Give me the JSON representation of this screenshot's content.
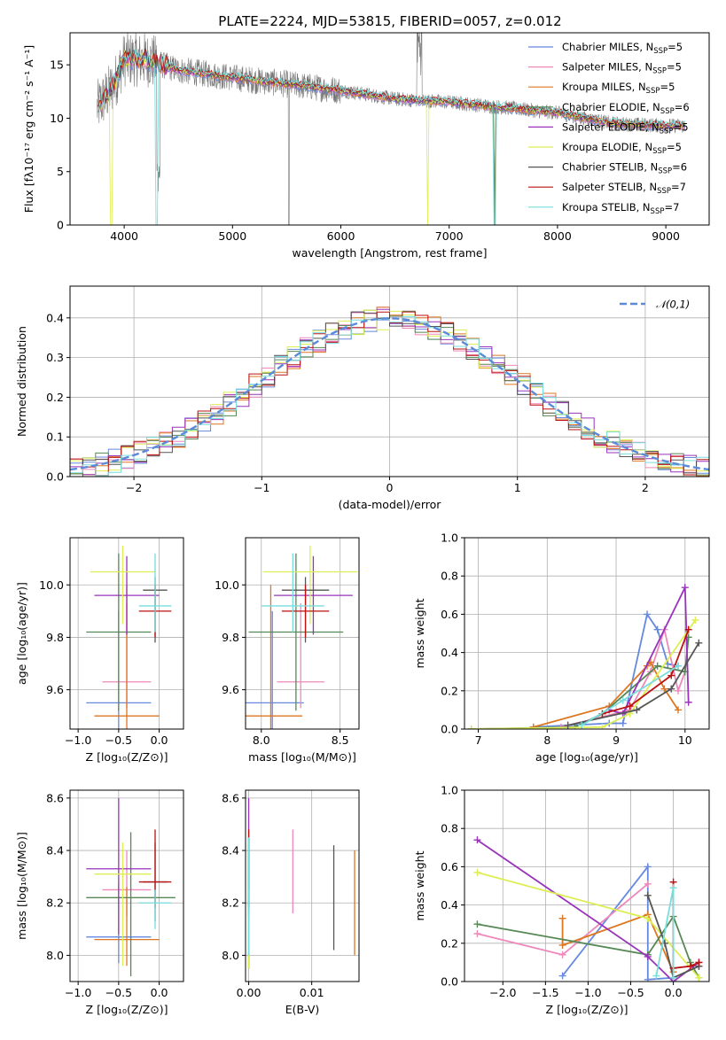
{
  "title": "PLATE=2224, MJD=53815, FIBERID=0057, z=0.012",
  "colors": [
    "#6688dd",
    "#ee88bb",
    "#dd7722",
    "#558855",
    "#9933bb",
    "#ddee55",
    "#555555",
    "#bb1111",
    "#77dddd"
  ],
  "legend": [
    {
      "name": "Chabrier MILES",
      "n": "5"
    },
    {
      "name": "Salpeter MILES",
      "n": "5"
    },
    {
      "name": "Kroupa MILES",
      "n": "5"
    },
    {
      "name": "Chabrier ELODIE",
      "n": "6"
    },
    {
      "name": "Salpeter ELODIE",
      "n": "5"
    },
    {
      "name": "Kroupa ELODIE",
      "n": "5"
    },
    {
      "name": "Chabrier STELIB",
      "n": "6"
    },
    {
      "name": "Salpeter STELIB",
      "n": "7"
    },
    {
      "name": "Kroupa STELIB",
      "n": "7"
    }
  ],
  "nssp_prefix": ", N",
  "nssp_sub": "SSP",
  "nssp_eq": "=",
  "chart_data": [
    {
      "id": "spectrum",
      "type": "line",
      "title": "PLATE=2224, MJD=53815, FIBERID=0057, z=0.012",
      "xlabel": "wavelength [Angstrom, rest frame]",
      "ylabel": "Flux [fλ10⁻¹⁷ erg cm⁻² s⁻¹ A⁻¹]",
      "xlim": [
        3500,
        9400
      ],
      "ylim": [
        0,
        18
      ],
      "xticks": [
        4000,
        5000,
        6000,
        7000,
        8000,
        9000
      ],
      "yticks": [
        0,
        5,
        10,
        15
      ],
      "data_wavelength_range": [
        3750,
        9180
      ],
      "continuum": [
        [
          3750,
          11
        ],
        [
          3900,
          13
        ],
        [
          4000,
          15.5
        ],
        [
          4200,
          15.5
        ],
        [
          4500,
          14.5
        ],
        [
          5000,
          13.8
        ],
        [
          5500,
          13.2
        ],
        [
          6000,
          12.6
        ],
        [
          6500,
          11.8
        ],
        [
          7000,
          11.5
        ],
        [
          7500,
          11
        ],
        [
          8000,
          10.5
        ],
        [
          8500,
          9.5
        ],
        [
          9000,
          9.3
        ],
        [
          9180,
          9.3
        ]
      ],
      "legend": "upper right",
      "grid": false
    },
    {
      "id": "residuals",
      "type": "step",
      "xlabel": "(data-model)/error",
      "ylabel": "Normed distribution",
      "xlim": [
        -2.5,
        2.5
      ],
      "ylim": [
        0,
        0.48
      ],
      "xticks": [
        -2,
        -1,
        0,
        1,
        2
      ],
      "yticks": [
        0.0,
        0.1,
        0.2,
        0.3,
        0.4
      ],
      "bin_width": 0.1,
      "reference": {
        "name": "𝒩(0,1)",
        "mean": 0,
        "sigma": 1
      },
      "legend": "upper right",
      "grid": true
    },
    {
      "id": "age_vs_Z",
      "type": "errorbar",
      "xlabel": "Z [log₁₀(Z/Z⊙)]",
      "ylabel": "age  [log₁₀(age/yr)]",
      "xlim": [
        -1.1,
        0.3
      ],
      "ylim": [
        9.45,
        10.18
      ],
      "xticks": [
        -1.0,
        -0.5,
        0.0
      ],
      "xticklabels": [
        "−1.0",
        "−0.5",
        "0.0"
      ],
      "yticks": [
        9.6,
        9.8,
        10.0
      ],
      "grid": true,
      "points": [
        {
          "series": 0,
          "x": -0.5,
          "y": 9.55,
          "xerr": 0.4,
          "yerr": [
            0.1,
            0.35
          ]
        },
        {
          "series": 1,
          "x": -0.4,
          "y": 9.63,
          "xerr": 0.3,
          "yerr": [
            0.1,
            0.3
          ]
        },
        {
          "series": 2,
          "x": -0.4,
          "y": 9.5,
          "xerr": 0.4,
          "yerr": [
            0.1,
            0.5
          ]
        },
        {
          "series": 3,
          "x": -0.5,
          "y": 9.82,
          "xerr": 0.4,
          "yerr": [
            0.3,
            0.3
          ]
        },
        {
          "series": 4,
          "x": -0.4,
          "y": 9.96,
          "xerr": 0.4,
          "yerr": [
            0.15,
            0.15
          ]
        },
        {
          "series": 5,
          "x": -0.45,
          "y": 10.05,
          "xerr": 0.4,
          "yerr": [
            0.2,
            0.1
          ]
        },
        {
          "series": 6,
          "x": -0.05,
          "y": 9.98,
          "xerr": 0.15,
          "yerr": [
            0.2,
            0.05
          ]
        },
        {
          "series": 7,
          "x": -0.05,
          "y": 9.9,
          "xerr": 0.2,
          "yerr": [
            0.1,
            0.1
          ]
        },
        {
          "series": 8,
          "x": -0.05,
          "y": 9.92,
          "xerr": 0.2,
          "yerr": [
            0.1,
            0.2
          ]
        }
      ]
    },
    {
      "id": "age_vs_mass",
      "type": "errorbar",
      "xlabel": "mass [log₁₀(M/M⊙)]",
      "ylabel": "",
      "xlim": [
        7.9,
        8.62
      ],
      "ylim": [
        9.45,
        10.18
      ],
      "xticks": [
        8.0,
        8.5
      ],
      "yticks": [
        9.6,
        9.8,
        10.0
      ],
      "grid": true,
      "points": [
        {
          "series": 0,
          "x": 8.07,
          "y": 9.55,
          "xerr": 0.2,
          "yerr": [
            0.1,
            0.35
          ]
        },
        {
          "series": 1,
          "x": 8.25,
          "y": 9.63,
          "xerr": 0.15,
          "yerr": [
            0.1,
            0.3
          ]
        },
        {
          "series": 2,
          "x": 8.06,
          "y": 9.5,
          "xerr": 0.2,
          "yerr": [
            0.1,
            0.5
          ]
        },
        {
          "series": 3,
          "x": 8.22,
          "y": 9.82,
          "xerr": 0.3,
          "yerr": [
            0.3,
            0.3
          ]
        },
        {
          "series": 4,
          "x": 8.33,
          "y": 9.96,
          "xerr": 0.25,
          "yerr": [
            0.15,
            0.15
          ]
        },
        {
          "series": 5,
          "x": 8.31,
          "y": 10.05,
          "xerr": 0.3,
          "yerr": [
            0.2,
            0.1
          ]
        },
        {
          "series": 6,
          "x": 8.28,
          "y": 9.98,
          "xerr": 0.15,
          "yerr": [
            0.2,
            0.05
          ]
        },
        {
          "series": 7,
          "x": 8.28,
          "y": 9.9,
          "xerr": 0.15,
          "yerr": [
            0.1,
            0.1
          ]
        },
        {
          "series": 8,
          "x": 8.2,
          "y": 9.92,
          "xerr": 0.2,
          "yerr": [
            0.1,
            0.2
          ]
        }
      ]
    },
    {
      "id": "weight_vs_age",
      "type": "line",
      "xlabel": "age  [log₁₀(age/yr)]",
      "ylabel": "mass weight",
      "xlim": [
        6.8,
        10.35
      ],
      "ylim": [
        0,
        1.0
      ],
      "xticks": [
        7,
        8,
        9,
        10
      ],
      "yticks": [
        0.0,
        0.2,
        0.4,
        0.6,
        0.8,
        1.0
      ],
      "grid": true,
      "series": [
        {
          "series": 0,
          "x": [
            7.8,
            8.9,
            9.1,
            9.45,
            9.6,
            9.75,
            9.9
          ],
          "y": [
            0.01,
            0.03,
            0.03,
            0.6,
            0.52,
            0.34,
            0.33
          ]
        },
        {
          "series": 1,
          "x": [
            8.2,
            9.2,
            9.5,
            9.7,
            9.9,
            10.0
          ],
          "y": [
            0.01,
            0.1,
            0.3,
            0.52,
            0.2,
            0.3
          ]
        },
        {
          "series": 2,
          "x": [
            7.8,
            8.9,
            9.45,
            9.5,
            9.7,
            9.9
          ],
          "y": [
            0.01,
            0.12,
            0.33,
            0.35,
            0.21,
            0.1
          ]
        },
        {
          "series": 3,
          "x": [
            6.9,
            8.4,
            8.8,
            9.6,
            10.0,
            10.05
          ],
          "y": [
            0.0,
            0.01,
            0.08,
            0.33,
            0.3,
            0.48
          ]
        },
        {
          "series": 4,
          "x": [
            8.9,
            9.1,
            10.0,
            10.05
          ],
          "y": [
            0.1,
            0.08,
            0.74,
            0.14
          ]
        },
        {
          "series": 5,
          "x": [
            6.9,
            8.8,
            9.2,
            10.15
          ],
          "y": [
            0.0,
            0.01,
            0.08,
            0.57
          ]
        },
        {
          "series": 6,
          "x": [
            8.3,
            9.3,
            9.8,
            10.2
          ],
          "y": [
            0.02,
            0.1,
            0.21,
            0.45
          ]
        },
        {
          "series": 7,
          "x": [
            8.8,
            9.2,
            9.8,
            10.05
          ],
          "y": [
            0.08,
            0.12,
            0.28,
            0.52
          ]
        },
        {
          "series": 8,
          "x": [
            8.5,
            9.1,
            9.9
          ],
          "y": [
            0.02,
            0.15,
            0.33
          ]
        }
      ]
    },
    {
      "id": "mass_vs_Z",
      "type": "errorbar",
      "xlabel": "Z [log₁₀(Z/Z⊙)]",
      "ylabel": "mass [log₁₀(M/M⊙)]",
      "xlim": [
        -1.1,
        0.3
      ],
      "ylim": [
        7.9,
        8.63
      ],
      "xticks": [
        -1.0,
        -0.5,
        0.0
      ],
      "xticklabels": [
        "−1.0",
        "−0.5",
        "0.0"
      ],
      "yticks": [
        8.0,
        8.2,
        8.4,
        8.6
      ],
      "grid": true,
      "points": [
        {
          "series": 0,
          "x": -0.5,
          "y": 8.07,
          "xerr": 0.4,
          "yerr": [
            0.1,
            0.2
          ]
        },
        {
          "series": 1,
          "x": -0.4,
          "y": 8.25,
          "xerr": 0.3,
          "yerr": [
            0.1,
            0.15
          ]
        },
        {
          "series": 2,
          "x": -0.4,
          "y": 8.06,
          "xerr": 0.4,
          "yerr": [
            0.1,
            0.2
          ]
        },
        {
          "series": 3,
          "x": -0.35,
          "y": 8.22,
          "xerr": 0.55,
          "yerr": [
            0.3,
            0.25
          ]
        },
        {
          "series": 4,
          "x": -0.5,
          "y": 8.33,
          "xerr": 0.4,
          "yerr": [
            0.25,
            0.27
          ]
        },
        {
          "series": 5,
          "x": -0.45,
          "y": 8.31,
          "xerr": 0.35,
          "yerr": [
            0.35,
            0.12
          ]
        },
        {
          "series": 6,
          "x": -0.05,
          "y": 8.28,
          "xerr": 0.15,
          "yerr": [
            0.15,
            0.15
          ]
        },
        {
          "series": 7,
          "x": -0.05,
          "y": 8.28,
          "xerr": 0.2,
          "yerr": [
            0.1,
            0.2
          ]
        },
        {
          "series": 8,
          "x": -0.05,
          "y": 8.2,
          "xerr": 0.2,
          "yerr": [
            0.1,
            0.05
          ]
        }
      ]
    },
    {
      "id": "mass_vs_ebv",
      "type": "errorbar",
      "xlabel": "E(B-V)",
      "ylabel": "",
      "xlim": [
        -0.0005,
        0.0175
      ],
      "ylim": [
        7.9,
        8.63
      ],
      "xticks": [
        0.0,
        0.01
      ],
      "xticklabels": [
        "0.00",
        "0.01"
      ],
      "yticks": [
        8.0,
        8.2,
        8.4,
        8.6
      ],
      "grid": true,
      "points": [
        {
          "series": 0,
          "x": 0.0,
          "y": 8.1,
          "xerr": 0,
          "yerr": [
            0.15,
            0.3
          ]
        },
        {
          "series": 1,
          "x": 0.007,
          "y": 8.32,
          "xerr": 0,
          "yerr": [
            0.16,
            0.16
          ]
        },
        {
          "series": 2,
          "x": 0.0168,
          "y": 8.2,
          "xerr": 0,
          "yerr": [
            0.2,
            0.2
          ]
        },
        {
          "series": 3,
          "x": 0.0,
          "y": 8.3,
          "xerr": 0,
          "yerr": [
            0.35,
            0.15
          ]
        },
        {
          "series": 4,
          "x": 0.0,
          "y": 8.35,
          "xerr": 0,
          "yerr": [
            0.2,
            0.25
          ]
        },
        {
          "series": 5,
          "x": 0.0,
          "y": 8.1,
          "xerr": 0,
          "yerr": [
            0.15,
            0.15
          ]
        },
        {
          "series": 6,
          "x": 0.0135,
          "y": 8.22,
          "xerr": 0,
          "yerr": [
            0.2,
            0.2
          ]
        },
        {
          "series": 7,
          "x": 0.0,
          "y": 8.28,
          "xerr": 0,
          "yerr": [
            0.1,
            0.2
          ]
        },
        {
          "series": 8,
          "x": 0.0,
          "y": 8.2,
          "xerr": 0,
          "yerr": [
            0.2,
            0.25
          ]
        }
      ]
    },
    {
      "id": "weight_vs_Z",
      "type": "line",
      "xlabel": "Z [log₁₀(Z/Z⊙)]",
      "ylabel": "mass weight",
      "xlim": [
        -2.45,
        0.42
      ],
      "ylim": [
        0,
        1.0
      ],
      "xticks": [
        -2.0,
        -1.5,
        -1.0,
        -0.5,
        0.0
      ],
      "xticklabels": [
        "−2.0",
        "−1.5",
        "−1.0",
        "−0.5",
        "0.0"
      ],
      "yticks": [
        0.0,
        0.2,
        0.4,
        0.6,
        0.8,
        1.0
      ],
      "grid": true,
      "series": [
        {
          "series": 0,
          "x": [
            -1.3,
            -0.3,
            -0.3,
            0.0
          ],
          "y": [
            0.03,
            0.6,
            0.01,
            0.02
          ]
        },
        {
          "series": 1,
          "x": [
            -2.3,
            -1.3,
            -0.3
          ],
          "y": [
            0.25,
            0.14,
            0.51
          ]
        },
        {
          "series": 2,
          "x": [
            -1.3,
            -1.3,
            -0.3,
            0.0
          ],
          "y": [
            0.33,
            0.19,
            0.35,
            0.05
          ]
        },
        {
          "series": 3,
          "x": [
            -2.3,
            -0.3,
            0.0,
            0.2,
            0.3
          ],
          "y": [
            0.3,
            0.14,
            0.34,
            0.1,
            0.02
          ]
        },
        {
          "series": 4,
          "x": [
            -2.3,
            -0.3,
            0.0,
            0.3,
            0.3
          ],
          "y": [
            0.74,
            0.13,
            0.0,
            0.1,
            0.08
          ]
        },
        {
          "series": 5,
          "x": [
            -2.3,
            -0.3,
            0.3
          ],
          "y": [
            0.57,
            0.33,
            0.02
          ]
        },
        {
          "series": 6,
          "x": [
            -0.3,
            -0.1,
            0.0,
            0.3
          ],
          "y": [
            0.45,
            0.2,
            0.02,
            0.08
          ]
        },
        {
          "series": 7,
          "x": [
            0.0,
            0.0,
            0.2,
            0.3
          ],
          "y": [
            0.52,
            0.07,
            0.08,
            0.1
          ]
        },
        {
          "series": 8,
          "x": [
            -0.2,
            0.0,
            0.0
          ],
          "y": [
            0.03,
            0.49,
            0.02
          ]
        }
      ]
    }
  ]
}
